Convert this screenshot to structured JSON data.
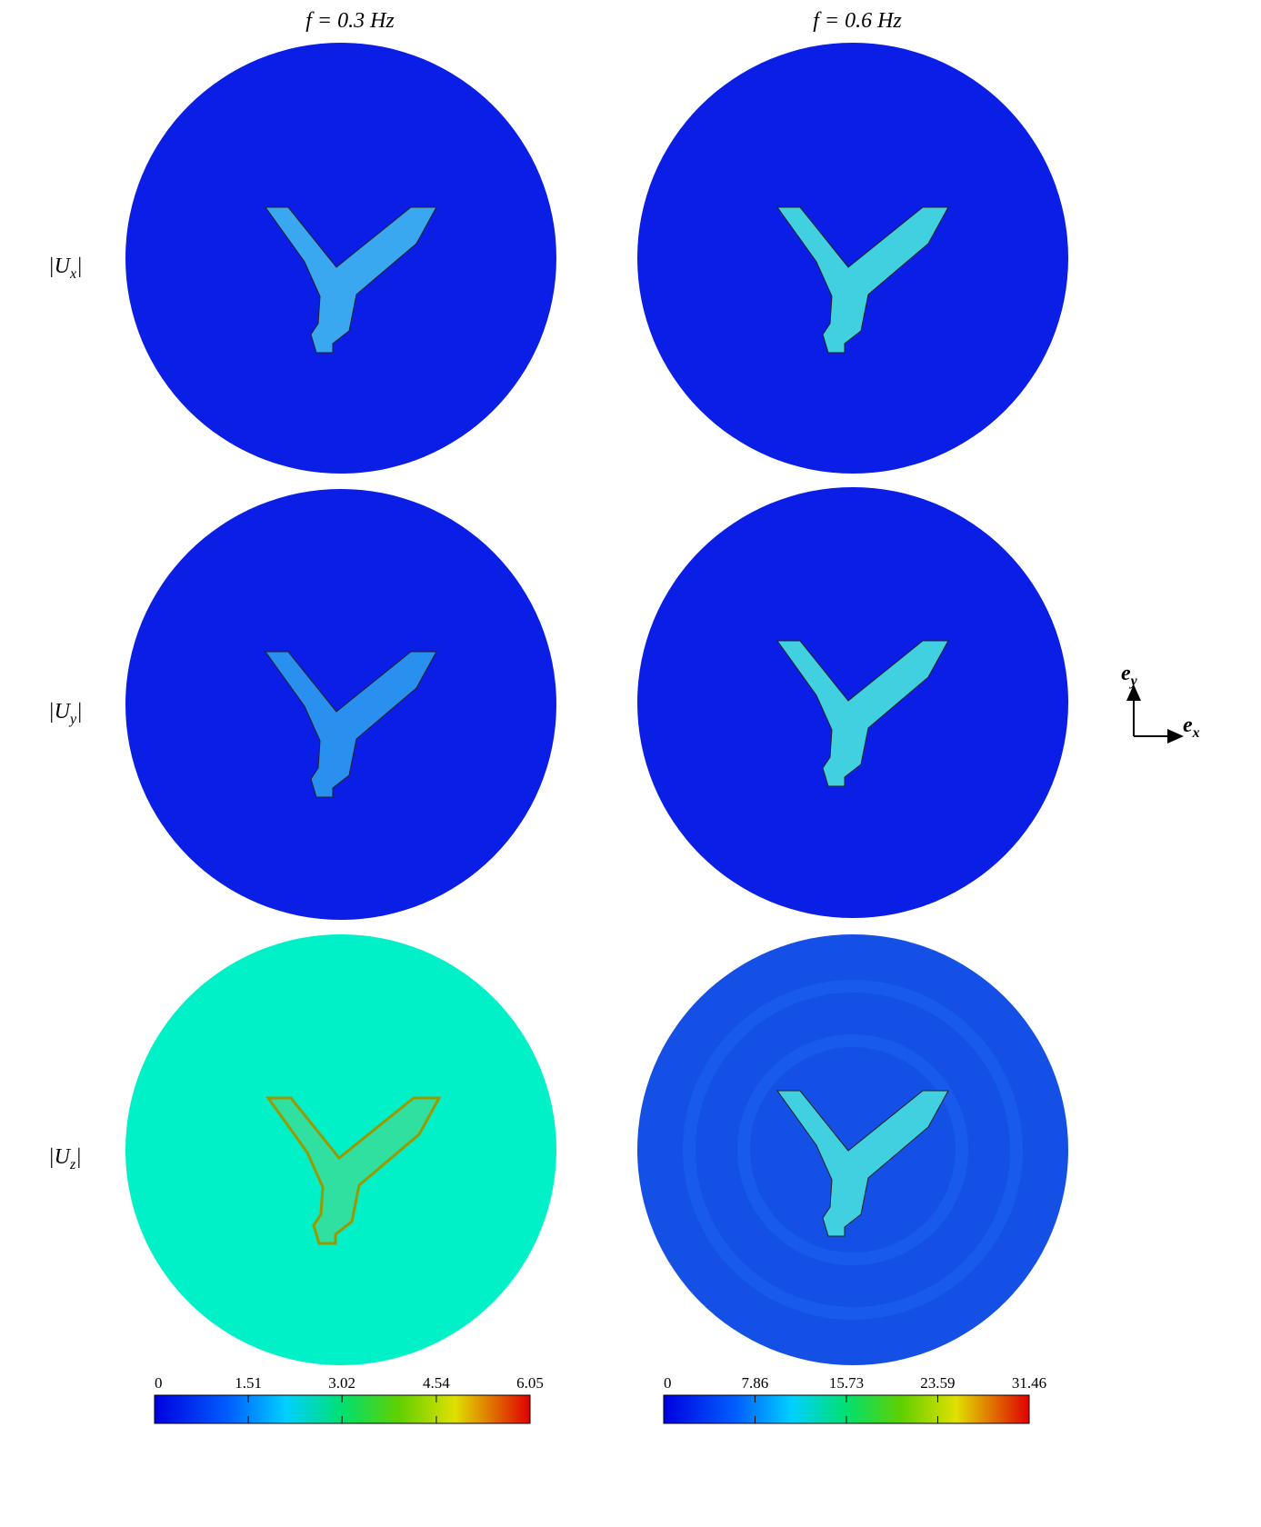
{
  "columns": [
    {
      "title": "f = 0.3 Hz",
      "colorbar": {
        "lim": [
          0,
          6.05
        ],
        "ticks": [
          0,
          1.51,
          3.02,
          4.54,
          6.05
        ]
      }
    },
    {
      "title": "f = 0.6 Hz",
      "colorbar": {
        "lim": [
          0,
          31.46
        ],
        "ticks": [
          0,
          7.86,
          15.73,
          23.59,
          31.46
        ]
      }
    }
  ],
  "rows": [
    {
      "pre": "|U",
      "sub": "x",
      "post": "|"
    },
    {
      "pre": "|U",
      "sub": "y",
      "post": "|"
    },
    {
      "pre": "|U",
      "sub": "z",
      "post": "|"
    }
  ],
  "axes": {
    "x": {
      "symbol": "e",
      "sub": "x"
    },
    "y": {
      "symbol": "e",
      "sub": "y"
    }
  }
}
